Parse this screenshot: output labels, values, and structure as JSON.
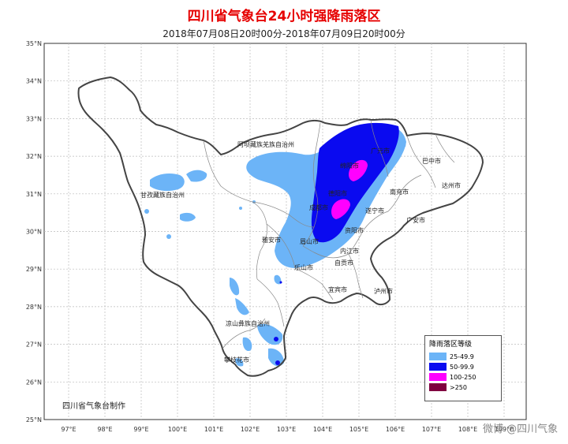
{
  "title": "四川省气象台24小时强降雨落区",
  "subtitle": "2018年07月08日20时00分-2018年07月09日20时00分",
  "credit": "四川省气象台制作",
  "watermark": "微博 @四川气象",
  "lat_labels": [
    "35°N",
    "34°N",
    "33°N",
    "32°N",
    "31°N",
    "30°N",
    "29°N",
    "28°N",
    "27°N",
    "26°N",
    "25°N"
  ],
  "lon_labels": [
    "97°E",
    "98°E",
    "99°E",
    "100°E",
    "101°E",
    "102°E",
    "103°E",
    "104°E",
    "105°E",
    "106°E",
    "107°E",
    "108°E",
    "109°E"
  ],
  "places": {
    "aba": "阿坝藏族羌族自治州",
    "ganzi": "甘孜藏族自治州",
    "liangshan": "凉山彝族自治州",
    "mianyang": "绵阳市",
    "guangyuan": "广元市",
    "bazhong": "巴中市",
    "dazhou": "达州市",
    "nanchong": "南充市",
    "guangan": "广安市",
    "suining": "遂宁市",
    "deyang": "德阳市",
    "chengdu": "成都市",
    "ziyang": "资阳市",
    "meishan": "眉山市",
    "yaan": "雅安市",
    "neijiang": "内江市",
    "zigong": "自贡市",
    "leshan": "乐山市",
    "yibin": "宜宾市",
    "luzhou": "泸州市",
    "panzhihua": "攀枝花市"
  },
  "legend": {
    "title": "降雨落区等级",
    "items": [
      {
        "label": "25-49.9",
        "color": "#6cb4f7"
      },
      {
        "label": "50-99.9",
        "color": "#0a0af0"
      },
      {
        "label": "100-250",
        "color": "#ff00ff"
      },
      {
        "label": ">250",
        "color": "#800040"
      }
    ]
  }
}
